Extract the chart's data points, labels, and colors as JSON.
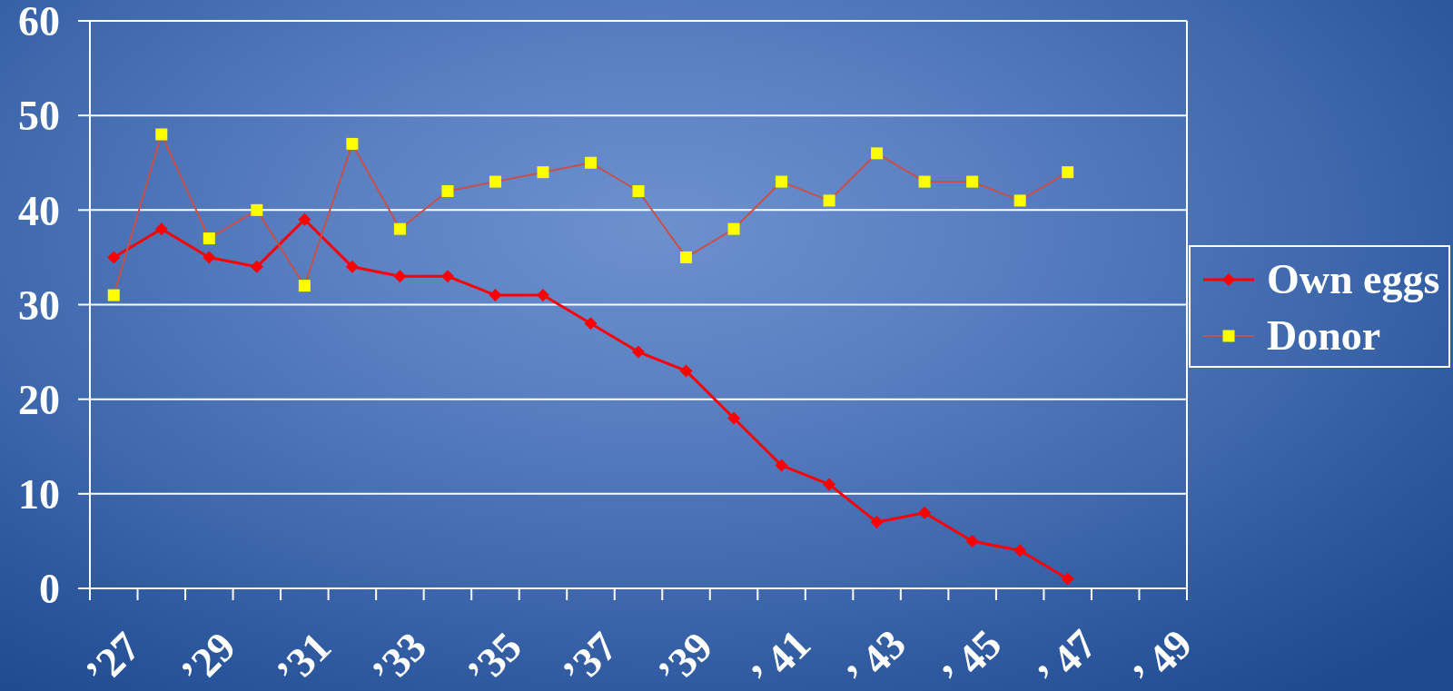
{
  "chart_data": {
    "type": "line",
    "categories": [
      "’27",
      null,
      "’29",
      null,
      "’31",
      null,
      "’33",
      null,
      "’35",
      null,
      "’37",
      null,
      "’39",
      null,
      "’ 41",
      null,
      "’ 43",
      null,
      "’ 45",
      null,
      "’ 47",
      null,
      "’ 49"
    ],
    "series": [
      {
        "name": "Own eggs",
        "color": "#ff0000",
        "marker": "diamond",
        "values": [
          35,
          38,
          35,
          34,
          39,
          34,
          33,
          33,
          31,
          31,
          28,
          25,
          23,
          18,
          13,
          11,
          7,
          8,
          5,
          4,
          1,
          null,
          null
        ]
      },
      {
        "name": "Donor",
        "color": "#c8504b",
        "marker": "square",
        "colors": [
          "#ffff00",
          "#ffff00",
          "#ffff00",
          "#ffff00",
          "#ffff00",
          "#ffff00",
          "#ffff00",
          "#ffff00",
          "#ffff00",
          "#ffff00",
          "#ffff00",
          "#ffff00",
          "#ffff00",
          "#ffff00",
          "#ffff00",
          "#ffff00",
          "#ffff00",
          "#ffff00",
          "#ffff00",
          "#ffff00",
          "#ffff00",
          null,
          null
        ],
        "values": [
          31,
          48,
          37,
          40,
          32,
          47,
          38,
          42,
          43,
          44,
          45,
          42,
          35,
          38,
          43,
          41,
          46,
          43,
          43,
          41,
          44,
          null,
          null
        ]
      }
    ],
    "ylim": [
      0,
      60
    ],
    "yticks": [
      0,
      10,
      20,
      30,
      40,
      50,
      60
    ],
    "grid": "y",
    "legend": "right"
  }
}
